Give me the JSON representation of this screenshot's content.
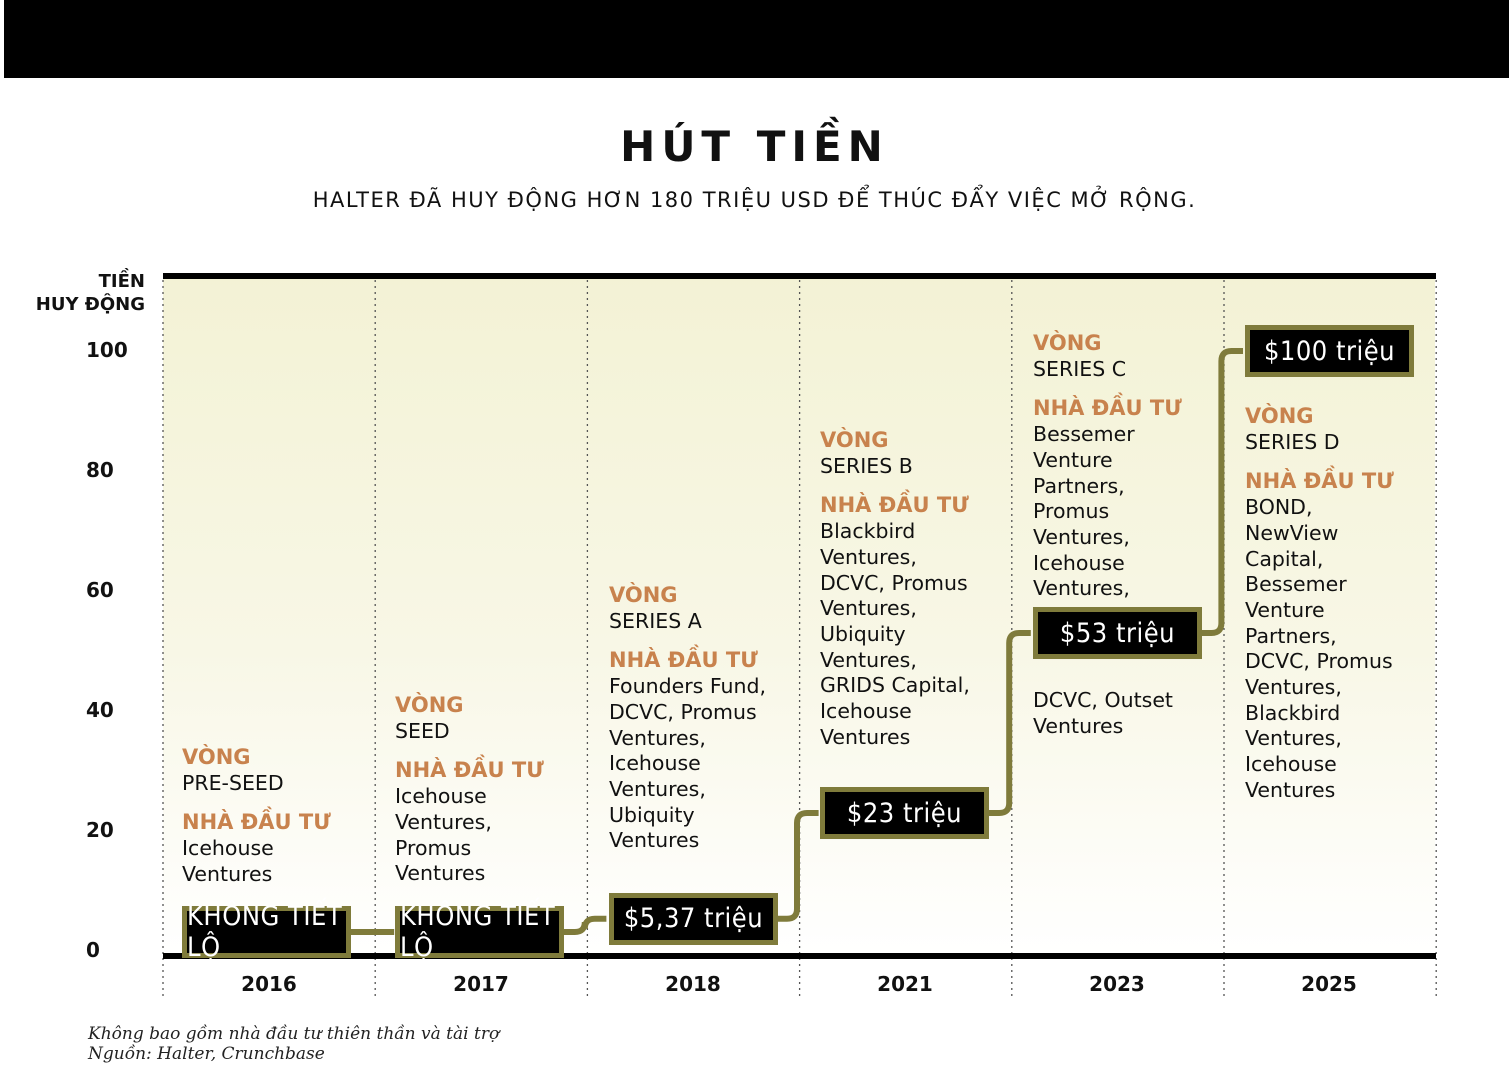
{
  "chart_data": {
    "type": "step",
    "title": "HÚT TIỀN",
    "subtitle": "HALTER ĐÃ HUY ĐỘNG HƠN 180 TRIỆU USD ĐỂ THÚC ĐẨY VIỆC MỞ RỘNG.",
    "ylabel_line1": "TIỀN",
    "ylabel_line2": "HUY ĐỘNG",
    "yticks": [
      "100",
      "80",
      "60",
      "40",
      "20",
      "0"
    ],
    "ylim": [
      0,
      100
    ],
    "categories": [
      "2016",
      "2017",
      "2018",
      "2021",
      "2023",
      "2025"
    ],
    "values": [
      0,
      0,
      5.37,
      23,
      53,
      100
    ],
    "value_labels": [
      "KHÔNG TIẾT LỘ",
      "KHÔNG TIẾT LỘ",
      "$5,37 triệu",
      "$23 triệu",
      "$53 triệu",
      "$100 triệu"
    ],
    "round_heading": "VÒNG",
    "investor_heading": "NHÀ ĐẦU TƯ",
    "rounds": [
      "PRE-SEED",
      "SEED",
      "SERIES A",
      "SERIES B",
      "SERIES C",
      "SERIES D"
    ],
    "investors": [
      [
        "Icehouse",
        "Ventures"
      ],
      [
        "Icehouse",
        "Ventures,",
        "Promus",
        "Ventures"
      ],
      [
        "Founders Fund,",
        "DCVC, Promus",
        "Ventures,",
        "Icehouse",
        "Ventures,",
        "Ubiquity",
        "Ventures"
      ],
      [
        "Blackbird",
        "Ventures,",
        "DCVC, Promus",
        "Ventures,",
        "Ubiquity",
        "Ventures,",
        "GRIDS Capital,",
        "Icehouse",
        "Ventures"
      ],
      [
        "Bessemer",
        "Venture",
        "Partners,",
        "Promus",
        "Ventures,",
        "Icehouse",
        "Ventures,"
      ],
      [
        "BOND,",
        "NewView",
        "Capital,",
        "Bessemer",
        "Venture",
        "Partners,",
        "DCVC, Promus",
        "Ventures,",
        "Blackbird",
        "Ventures,",
        "Icehouse",
        "Ventures"
      ]
    ],
    "investors_continued_2023": [
      "DCVC, Outset",
      "Ventures"
    ],
    "colors": {
      "step_line": "#7f7b3b",
      "label_accent": "#c8824d",
      "plot_bg_top": "#f3f2d5"
    },
    "grid": "vertical dotted separators"
  },
  "footnote": {
    "line1": "Không bao gồm nhà đầu tư thiên thần và tài trợ",
    "line2": "Nguồn: Halter, Crunchbase"
  }
}
